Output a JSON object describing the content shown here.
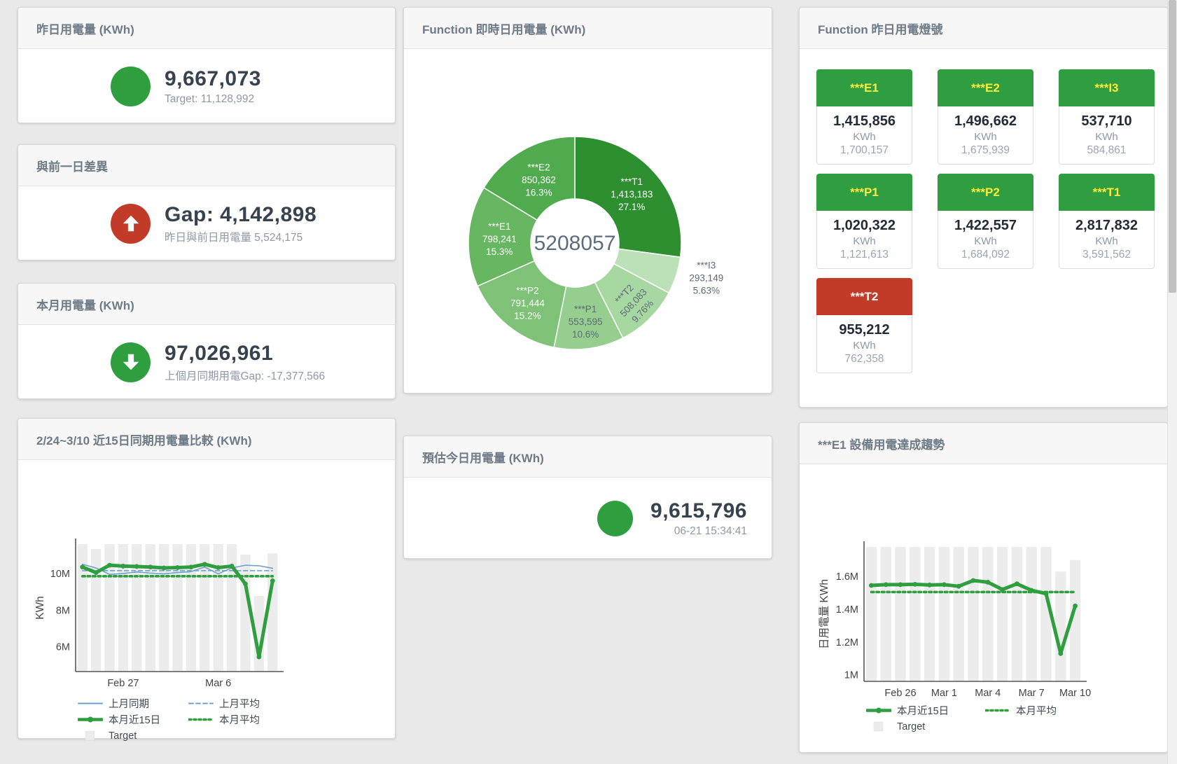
{
  "colors": {
    "green": "#2f9e3f",
    "red": "#c13b28",
    "blue": "#6ea0cc",
    "bar_gray": "#ececec",
    "tile_green": "#2f9e41",
    "tile_label_yellow": "#ffeb3b",
    "text_dark": "#36424e",
    "text_gray": "#8d99a6"
  },
  "kpis": {
    "yesterday": {
      "title": "昨日用電量 (KWh)",
      "value": "9,667,073",
      "sub": "Target: 11,128,992"
    },
    "gap": {
      "title": "與前一日差異",
      "value": "Gap: 4,142,898",
      "sub": "昨日與前日用電量 5,524,175"
    },
    "month": {
      "title": "本月用電量 (KWh)",
      "value": "97,026,961",
      "sub": "上個月同期用電Gap: -17,377,566"
    },
    "forecast": {
      "title": "預估今日用電量 (KWh)",
      "value": "9,615,796",
      "sub": "06-21 15:34:41"
    }
  },
  "lights": {
    "title": "Function 昨日用電燈號",
    "tiles": [
      {
        "name": "***E1",
        "value": "1,415,856",
        "unit": "KWh",
        "target": "1,700,157",
        "status": "green"
      },
      {
        "name": "***E2",
        "value": "1,496,662",
        "unit": "KWh",
        "target": "1,675,939",
        "status": "green"
      },
      {
        "name": "***I3",
        "value": "537,710",
        "unit": "KWh",
        "target": "584,861",
        "status": "green"
      },
      {
        "name": "***P1",
        "value": "1,020,322",
        "unit": "KWh",
        "target": "1,121,613",
        "status": "green"
      },
      {
        "name": "***P2",
        "value": "1,422,557",
        "unit": "KWh",
        "target": "1,684,092",
        "status": "green"
      },
      {
        "name": "***T1",
        "value": "2,817,832",
        "unit": "KWh",
        "target": "3,591,562",
        "status": "green"
      },
      {
        "name": "***T2",
        "value": "955,212",
        "unit": "KWh",
        "target": "762,358",
        "status": "red"
      }
    ]
  },
  "chart_data": [
    {
      "id": "donut",
      "type": "pie",
      "title": "Function 即時日用電量 (KWh)",
      "center_total": "5208057",
      "slices": [
        {
          "name": "***T1",
          "value": 1413183,
          "value_text": "1,413,183",
          "pct": 27.1,
          "pct_text": "27.1%",
          "color": "#2e8f31",
          "label_color": "#ffffff",
          "label_r": 108
        },
        {
          "name": "***I3",
          "value": 293149,
          "value_text": "293,149",
          "pct": 5.63,
          "pct_text": "5.63%",
          "color": "#bce0b7",
          "label_color": "#5d6a76",
          "label_r": 194,
          "label_angle": 104.5
        },
        {
          "name": "***T2",
          "value": 508083,
          "value_text": "508,083",
          "pct": 9.76,
          "pct_text": "9.76%",
          "color": "#a8d8a2",
          "label_color": "#5d6a76",
          "label_r": 118,
          "rotate": -47
        },
        {
          "name": "***P1",
          "value": 553595,
          "value_text": "553,595",
          "pct": 10.6,
          "pct_text": "10.6%",
          "color": "#95ce8f",
          "label_color": "#5d6a76",
          "label_r": 112
        },
        {
          "name": "***P2",
          "value": 791444,
          "value_text": "791,444",
          "pct": 15.2,
          "pct_text": "15.2%",
          "color": "#7dc277",
          "label_color": "#ffffff",
          "label_r": 108
        },
        {
          "name": "***E1",
          "value": 798241,
          "value_text": "798,241",
          "pct": 15.3,
          "pct_text": "15.3%",
          "color": "#67b762",
          "label_color": "#ffffff",
          "label_r": 108
        },
        {
          "name": "***E2",
          "value": 850362,
          "value_text": "850,362",
          "pct": 16.3,
          "pct_text": "16.3%",
          "color": "#4fab4d",
          "label_color": "#ffffff",
          "label_r": 105
        }
      ]
    },
    {
      "id": "compare",
      "type": "line+bar",
      "title": "2/24~3/10 近15日同期用電量比較 (KWh)",
      "ylabel": "KWh",
      "ylim": [
        4.65,
        11.6
      ],
      "yticks": [
        {
          "v": 6,
          "label": "6M"
        },
        {
          "v": 8,
          "label": "8M"
        },
        {
          "v": 10,
          "label": "10M"
        }
      ],
      "categories": [
        "2/24",
        "2/25",
        "2/26",
        "2/27",
        "2/28",
        "3/1",
        "3/2",
        "3/3",
        "3/4",
        "3/5",
        "3/6",
        "3/7",
        "3/8",
        "3/9",
        "3/10"
      ],
      "xticks": [
        {
          "i": 3,
          "label": "Feb 27"
        },
        {
          "i": 10,
          "label": "Mar 6"
        }
      ],
      "target_bars": [
        11.6,
        11.33,
        11.6,
        11.6,
        11.6,
        11.6,
        11.6,
        11.6,
        11.6,
        11.6,
        11.6,
        11.6,
        11.03,
        8.77,
        11.1
      ],
      "series": [
        {
          "name": "上月同期",
          "style": "solid",
          "color": "#6ea0cc",
          "width": 1.6,
          "values": [
            10.5,
            10.3,
            9.95,
            10.0,
            10.08,
            10.02,
            9.98,
            10.05,
            10.1,
            10.35,
            9.98,
            10.3,
            10.45,
            10.42,
            10.28
          ]
        },
        {
          "name": "上月平均",
          "style": "dash",
          "color": "#6ea0cc",
          "width": 1.6,
          "values": 10.15
        },
        {
          "name": "本月近15日",
          "style": "solid",
          "color": "#2f9e3f",
          "width": 5,
          "markers": true,
          "values": [
            10.35,
            10.05,
            10.45,
            10.4,
            10.38,
            10.35,
            10.3,
            10.32,
            10.35,
            10.5,
            10.32,
            10.4,
            9.43,
            5.45,
            9.6
          ]
        },
        {
          "name": "本月平均",
          "style": "dots",
          "color": "#2f9e3f",
          "width": 3.6,
          "values": 9.85
        }
      ],
      "legend": [
        {
          "swatch": "line",
          "color": "#6ea0cc",
          "label": "上月同期"
        },
        {
          "swatch": "dash",
          "color": "#6ea0cc",
          "label": "上月平均"
        },
        {
          "swatch": "thick",
          "color": "#2f9e3f",
          "label": "本月近15日"
        },
        {
          "swatch": "dots",
          "color": "#2f9e3f",
          "label": "本月平均"
        },
        {
          "swatch": "square",
          "color": "#ececec",
          "label": "Target"
        }
      ]
    },
    {
      "id": "trend",
      "type": "line+bar",
      "title": "***E1 設備用電達成趨勢",
      "ylabel": "日用電量 KWh",
      "ylim": [
        0.96,
        1.78
      ],
      "yticks": [
        {
          "v": 1,
          "label": "1M"
        },
        {
          "v": 1.2,
          "label": "1.2M"
        },
        {
          "v": 1.4,
          "label": "1.4M"
        },
        {
          "v": 1.6,
          "label": "1.6M"
        }
      ],
      "categories": [
        "2/24",
        "2/25",
        "2/26",
        "2/27",
        "2/28",
        "3/1",
        "3/2",
        "3/3",
        "3/4",
        "3/5",
        "3/6",
        "3/7",
        "3/8",
        "3/9",
        "3/10"
      ],
      "xticks": [
        {
          "i": 2,
          "label": "Feb 26"
        },
        {
          "i": 5,
          "label": "Mar 1"
        },
        {
          "i": 8,
          "label": "Mar 4"
        },
        {
          "i": 11,
          "label": "Mar 7"
        },
        {
          "i": 14,
          "label": "Mar 10"
        }
      ],
      "target_bars": [
        1.78,
        1.78,
        1.78,
        1.78,
        1.78,
        1.78,
        1.78,
        1.78,
        1.78,
        1.78,
        1.78,
        1.78,
        1.78,
        1.63,
        1.7
      ],
      "series": [
        {
          "name": "本月近15日",
          "style": "solid",
          "color": "#2f9e3f",
          "width": 5,
          "markers": true,
          "values": [
            1.545,
            1.55,
            1.55,
            1.552,
            1.548,
            1.55,
            1.54,
            1.575,
            1.565,
            1.52,
            1.555,
            1.515,
            1.495,
            1.13,
            1.42
          ]
        },
        {
          "name": "本月平均",
          "style": "dots",
          "color": "#2f9e3f",
          "width": 3.6,
          "values": 1.505
        }
      ],
      "legend": [
        {
          "swatch": "thick",
          "color": "#2f9e3f",
          "label": "本月近15日"
        },
        {
          "swatch": "dots",
          "color": "#2f9e3f",
          "label": "本月平均"
        },
        {
          "swatch": "square",
          "color": "#ececec",
          "label": "Target"
        }
      ]
    }
  ]
}
